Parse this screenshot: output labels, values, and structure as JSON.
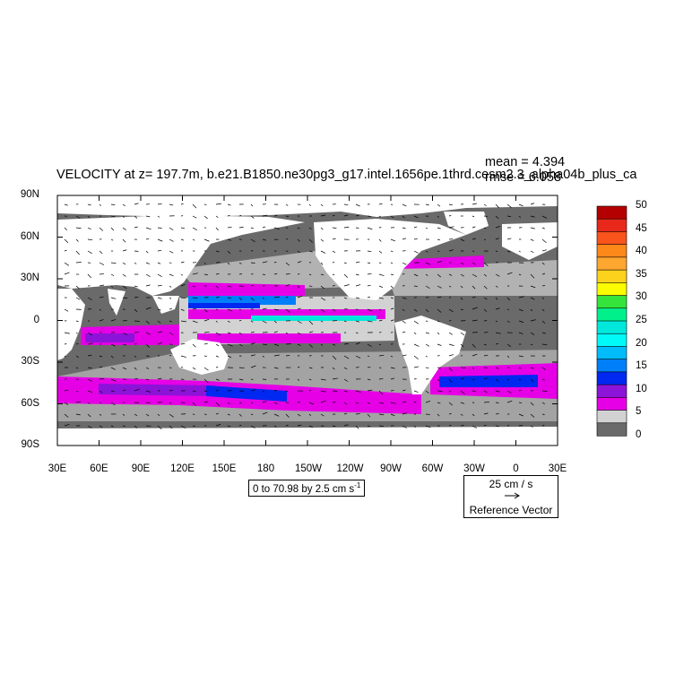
{
  "plot": {
    "title": "VELOCITY at z= 197.7m, b.e21.B1850.ne30pg3_g17.intel.1656pe.1thrd.cesm2.3_alpha04b_plus_ca",
    "mean_text": "mean = 4.394",
    "rmse_text": "rmse = 6.058",
    "contour_label": "0 to 70.98 by 2.5 cm s",
    "contour_label_exp": "-1",
    "reference_vector": {
      "speed": "25 cm / s",
      "label": "Reference Vector"
    }
  },
  "axes": {
    "lat_labels": [
      "90N",
      "60N",
      "30N",
      "0",
      "30S",
      "60S",
      "90S"
    ],
    "lon_labels": [
      "30E",
      "60E",
      "90E",
      "120E",
      "150E",
      "180",
      "150W",
      "120W",
      "90W",
      "60W",
      "30W",
      "0",
      "30E"
    ]
  },
  "colorbar": {
    "labels": [
      "50",
      "45",
      "40",
      "35",
      "30",
      "25",
      "20",
      "15",
      "10",
      "5",
      "0"
    ],
    "colors": [
      "#b40000",
      "#e8281a",
      "#f8541c",
      "#fb8818",
      "#fda630",
      "#fcd21c",
      "#fcfc00",
      "#34e43a",
      "#00f08c",
      "#00e8dc",
      "#00faf8",
      "#00bcfa",
      "#0080f8",
      "#0028f0",
      "#8c14d8",
      "#e600e6",
      "#d2d2d2",
      "#6a6a6a"
    ]
  },
  "map": {
    "land_color": "#ffffff",
    "ocean_base_color": "#6a6a6a"
  }
}
